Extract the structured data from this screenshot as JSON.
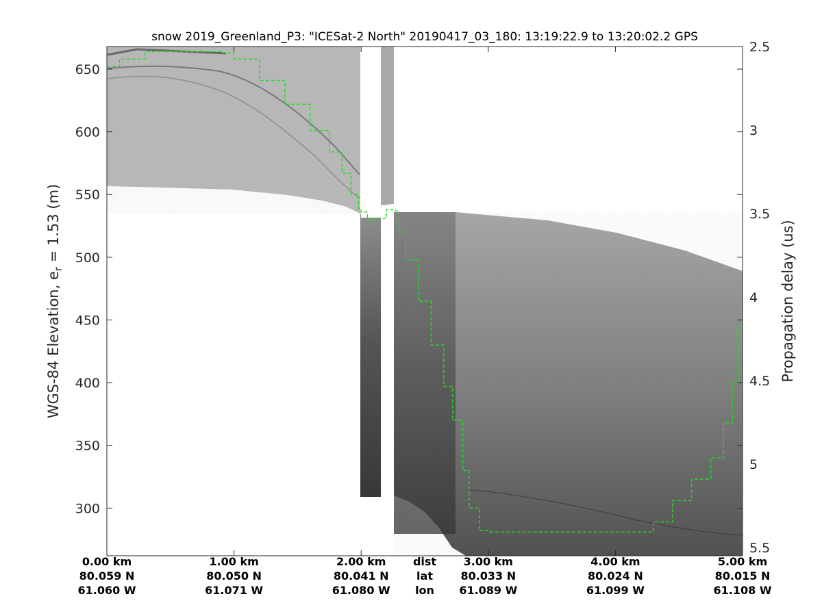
{
  "chart_data": {
    "type": "heatmap",
    "title": "snow 2019_Greenland_P3: \"ICESat-2 North\"  20190417_03_180: 13:19:22.9 to 13:20:02.2 GPS",
    "ylabel_main": "WGS-84 Elevation, e",
    "ylabel_sub": "r",
    "ylabel_tail": " = 1.53 (m)",
    "y2label": "Propagation delay (us)",
    "xlim_km": [
      0,
      5
    ],
    "ylim_m": [
      262,
      668
    ],
    "y2lim_us": [
      2.5,
      5.55
    ],
    "yticks": [
      300,
      350,
      400,
      450,
      500,
      550,
      600,
      650
    ],
    "yticks_labels": [
      "300",
      "350",
      "400",
      "450",
      "500",
      "550",
      "600",
      "650"
    ],
    "y2ticks": [
      2.5,
      3,
      3.5,
      4,
      4.5,
      5,
      5.5
    ],
    "y2ticks_labels": [
      "2.5",
      "3",
      "3.5",
      "4",
      "4.5",
      "5",
      "5.5"
    ],
    "xticks": [
      {
        "km": 0,
        "dist": "0.00 km",
        "lat": "80.059 N",
        "lon": "61.060 W"
      },
      {
        "km": 1,
        "dist": "1.00 km",
        "lat": "80.050 N",
        "lon": "61.071 W"
      },
      {
        "km": 2,
        "dist": "2.00 km",
        "lat": "80.041 N",
        "lon": "61.080 W"
      },
      {
        "km": 3,
        "dist": "3.00 km",
        "lat": "80.033 N",
        "lon": "61.089 W"
      },
      {
        "km": 4,
        "dist": "4.00 km",
        "lat": "80.024 N",
        "lon": "61.099 W"
      },
      {
        "km": 5,
        "dist": "5.00 km",
        "lat": "80.015 N",
        "lon": "61.108 W"
      }
    ],
    "row_labels": {
      "dist": "dist",
      "lat": "lat",
      "lon": "lon"
    },
    "row_labels_km": 2.5,
    "surface_trace": {
      "color": "#22dd22",
      "style": "dashed",
      "km": [
        0.0,
        0.1,
        0.3,
        0.6,
        0.9,
        1.0,
        1.2,
        1.4,
        1.6,
        1.75,
        1.85,
        1.92,
        1.98,
        2.0,
        2.05,
        2.1,
        2.2,
        2.25,
        2.3,
        2.35,
        2.45,
        2.55,
        2.65,
        2.72,
        2.8,
        2.85,
        2.93,
        3.0,
        3.5,
        4.0,
        4.17,
        4.3,
        4.45,
        4.6,
        4.75,
        4.85,
        4.92,
        4.97,
        5.0
      ],
      "elev": [
        652,
        658,
        664,
        664,
        663,
        658,
        641,
        622,
        601,
        584,
        567,
        550,
        539,
        536,
        530,
        531,
        538,
        537,
        520,
        498,
        465,
        430,
        397,
        370,
        330,
        300,
        282,
        281,
        281,
        281,
        281,
        289,
        306,
        323,
        340,
        368,
        400,
        445,
        487
      ]
    },
    "data_gaps_km": [
      [
        2.0,
        2.16
      ],
      [
        2.25,
        2.3
      ]
    ],
    "colormap": "gray"
  }
}
